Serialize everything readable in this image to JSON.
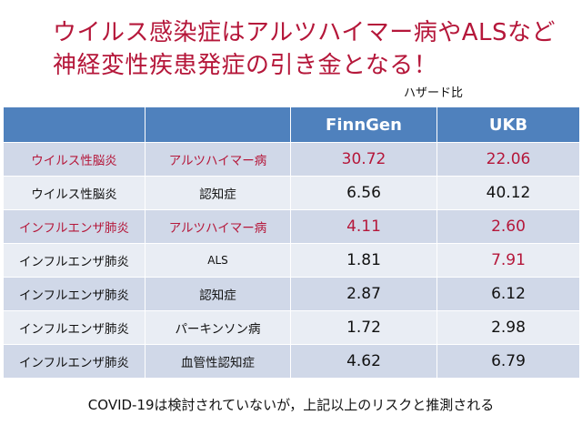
{
  "title_line1": "ウイルス感染症はアルツハイマー病やALSなど",
  "title_line2": "神経変性疾患発症の引き金となる！",
  "unit_label": "ハザード比",
  "columns": [
    "",
    "",
    "FinnGen",
    "UKB"
  ],
  "rows": [
    {
      "exposure": "ウイルス性脳炎",
      "outcome": "アルツハイマー病",
      "finngen": "30.72",
      "ukb": "22.06"
    },
    {
      "exposure": "ウイルス性脳炎",
      "outcome": "認知症",
      "finngen": "6.56",
      "ukb": "40.12"
    },
    {
      "exposure": "インフルエンザ肺炎",
      "outcome": "アルツハイマー病",
      "finngen": "4.11",
      "ukb": "2.60"
    },
    {
      "exposure": "インフルエンザ肺炎",
      "outcome": "ALS",
      "finngen": "1.81",
      "ukb": "7.91"
    },
    {
      "exposure": "インフルエンザ肺炎",
      "outcome": "認知症",
      "finngen": "2.87",
      "ukb": "6.12"
    },
    {
      "exposure": "インフルエンザ肺炎",
      "outcome": "パーキンソン病",
      "finngen": "1.72",
      "ukb": "2.98"
    },
    {
      "exposure": "インフルエンザ肺炎",
      "outcome": "血管性認知症",
      "finngen": "4.62",
      "ukb": "6.79"
    }
  ],
  "highlight_color": "#b5173a",
  "header_color": "#4f81bd",
  "footer": "COVID-19は検討されていないが，上記以上のリスクと推測される"
}
